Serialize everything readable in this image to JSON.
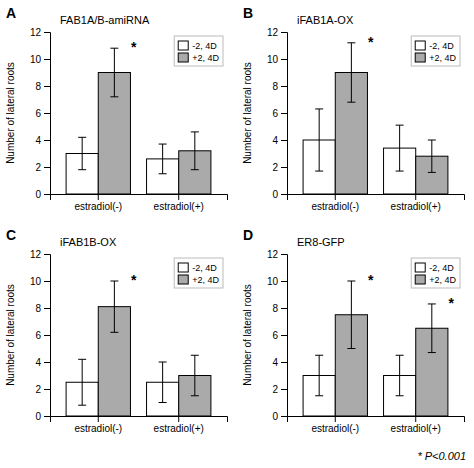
{
  "chart_data": [
    {
      "type": "bar",
      "panel_label": "A",
      "title": "FAB1A/B-amiRNA",
      "ylabel": "Number of lateral roots",
      "categories": [
        "estradiol(-)",
        "estradiol(+)"
      ],
      "series": [
        {
          "name": "-2, 4D",
          "color": "#ffffff",
          "values": [
            3.0,
            2.6
          ],
          "errors": [
            1.2,
            1.1
          ]
        },
        {
          "name": "+2, 4D",
          "color": "#aaaaaa",
          "values": [
            9.0,
            3.2
          ],
          "errors": [
            1.8,
            1.4
          ]
        }
      ],
      "annotations": [
        {
          "text": "*",
          "category": "estradiol(-)",
          "series": "+2, 4D"
        }
      ],
      "ylim": [
        0,
        12
      ],
      "yticks": [
        0,
        2,
        4,
        6,
        8,
        10,
        12
      ],
      "grid": false,
      "legend": "upper right"
    },
    {
      "type": "bar",
      "panel_label": "B",
      "title": "iFAB1A-OX",
      "ylabel": "Number of lateral roots",
      "categories": [
        "estradiol(-)",
        "estradiol(+)"
      ],
      "series": [
        {
          "name": "-2, 4D",
          "color": "#ffffff",
          "values": [
            4.0,
            3.4
          ],
          "errors": [
            2.3,
            1.7
          ]
        },
        {
          "name": "+2, 4D",
          "color": "#aaaaaa",
          "values": [
            9.0,
            2.8
          ],
          "errors": [
            2.2,
            1.2
          ]
        }
      ],
      "annotations": [
        {
          "text": "*",
          "category": "estradiol(-)",
          "series": "+2, 4D"
        }
      ],
      "ylim": [
        0,
        12
      ],
      "yticks": [
        0,
        2,
        4,
        6,
        8,
        10,
        12
      ],
      "grid": false,
      "legend": "upper right"
    },
    {
      "type": "bar",
      "panel_label": "C",
      "title": "iFAB1B-OX",
      "ylabel": "Number of lateral roots",
      "categories": [
        "estradiol(-)",
        "estradiol(+)"
      ],
      "series": [
        {
          "name": "-2, 4D",
          "color": "#ffffff",
          "values": [
            2.5,
            2.5
          ],
          "errors": [
            1.7,
            1.5
          ]
        },
        {
          "name": "+2, 4D",
          "color": "#aaaaaa",
          "values": [
            8.1,
            3.0
          ],
          "errors": [
            1.9,
            1.5
          ]
        }
      ],
      "annotations": [
        {
          "text": "*",
          "category": "estradiol(-)",
          "series": "+2, 4D"
        }
      ],
      "ylim": [
        0,
        12
      ],
      "yticks": [
        0,
        2,
        4,
        6,
        8,
        10,
        12
      ],
      "grid": false,
      "legend": "upper right"
    },
    {
      "type": "bar",
      "panel_label": "D",
      "title": "ER8-GFP",
      "ylabel": "Number of lateral roots",
      "categories": [
        "estradiol(-)",
        "estradiol(+)"
      ],
      "series": [
        {
          "name": "-2, 4D",
          "color": "#ffffff",
          "values": [
            3.0,
            3.0
          ],
          "errors": [
            1.5,
            1.5
          ]
        },
        {
          "name": "+2, 4D",
          "color": "#aaaaaa",
          "values": [
            7.5,
            6.5
          ],
          "errors": [
            2.5,
            1.8
          ]
        }
      ],
      "annotations": [
        {
          "text": "*",
          "category": "estradiol(-)",
          "series": "+2, 4D"
        },
        {
          "text": "*",
          "category": "estradiol(+)",
          "series": "+2, 4D"
        }
      ],
      "ylim": [
        0,
        12
      ],
      "yticks": [
        0,
        2,
        4,
        6,
        8,
        10,
        12
      ],
      "grid": false,
      "legend": "upper right"
    }
  ],
  "footnote": "* P<0.001"
}
